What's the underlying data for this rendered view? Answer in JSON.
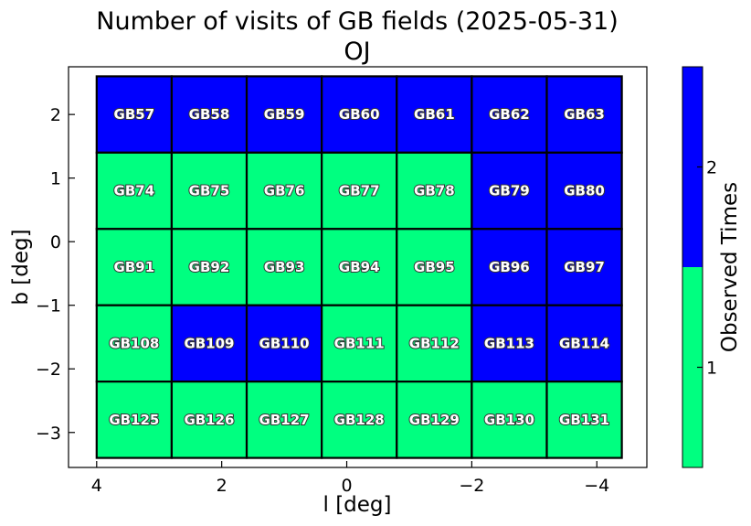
{
  "chart_data": {
    "type": "heatmap",
    "title": "Number of visits of GB fields (2025-05-31)",
    "subtitle": "OJ",
    "xlabel": "l [deg]",
    "ylabel": "b [deg]",
    "xlim": [
      4.45,
      -4.8
    ],
    "ylim": [
      -3.55,
      2.75
    ],
    "x_ticks": [
      4,
      2,
      0,
      -2,
      -4
    ],
    "x_tick_labels": [
      "4",
      "2",
      "0",
      "−2",
      "−4"
    ],
    "y_ticks": [
      2,
      1,
      0,
      -1,
      -2,
      -3
    ],
    "y_tick_labels": [
      "2",
      "1",
      "0",
      "−1",
      "−2",
      "−3"
    ],
    "grid": false,
    "columns_l_edges": [
      4.0,
      2.8,
      1.6,
      0.4,
      -0.8,
      -2.0,
      -3.2,
      -4.4
    ],
    "rows_b_edges": [
      2.6,
      1.4,
      0.2,
      -1.0,
      -2.2,
      -3.4
    ],
    "fields": [
      [
        "GB57",
        "GB58",
        "GB59",
        "GB60",
        "GB61",
        "GB62",
        "GB63"
      ],
      [
        "GB74",
        "GB75",
        "GB76",
        "GB77",
        "GB78",
        "GB79",
        "GB80"
      ],
      [
        "GB91",
        "GB92",
        "GB93",
        "GB94",
        "GB95",
        "GB96",
        "GB97"
      ],
      [
        "GB108",
        "GB109",
        "GB110",
        "GB111",
        "GB112",
        "GB113",
        "GB114"
      ],
      [
        "GB125",
        "GB126",
        "GB127",
        "GB128",
        "GB129",
        "GB130",
        "GB131"
      ]
    ],
    "values": [
      [
        2,
        2,
        2,
        2,
        2,
        2,
        2
      ],
      [
        1,
        1,
        1,
        1,
        1,
        2,
        2
      ],
      [
        1,
        1,
        1,
        1,
        1,
        2,
        2
      ],
      [
        1,
        2,
        2,
        1,
        1,
        2,
        2
      ],
      [
        1,
        1,
        1,
        1,
        1,
        1,
        1
      ]
    ],
    "colorbar": {
      "label": "Observed Times",
      "range": [
        0.5,
        2.5
      ],
      "ticks": [
        1,
        2
      ],
      "tick_labels": [
        "1",
        "2"
      ],
      "colors": {
        "1": "#00ff80",
        "2": "#0000ff"
      }
    }
  }
}
